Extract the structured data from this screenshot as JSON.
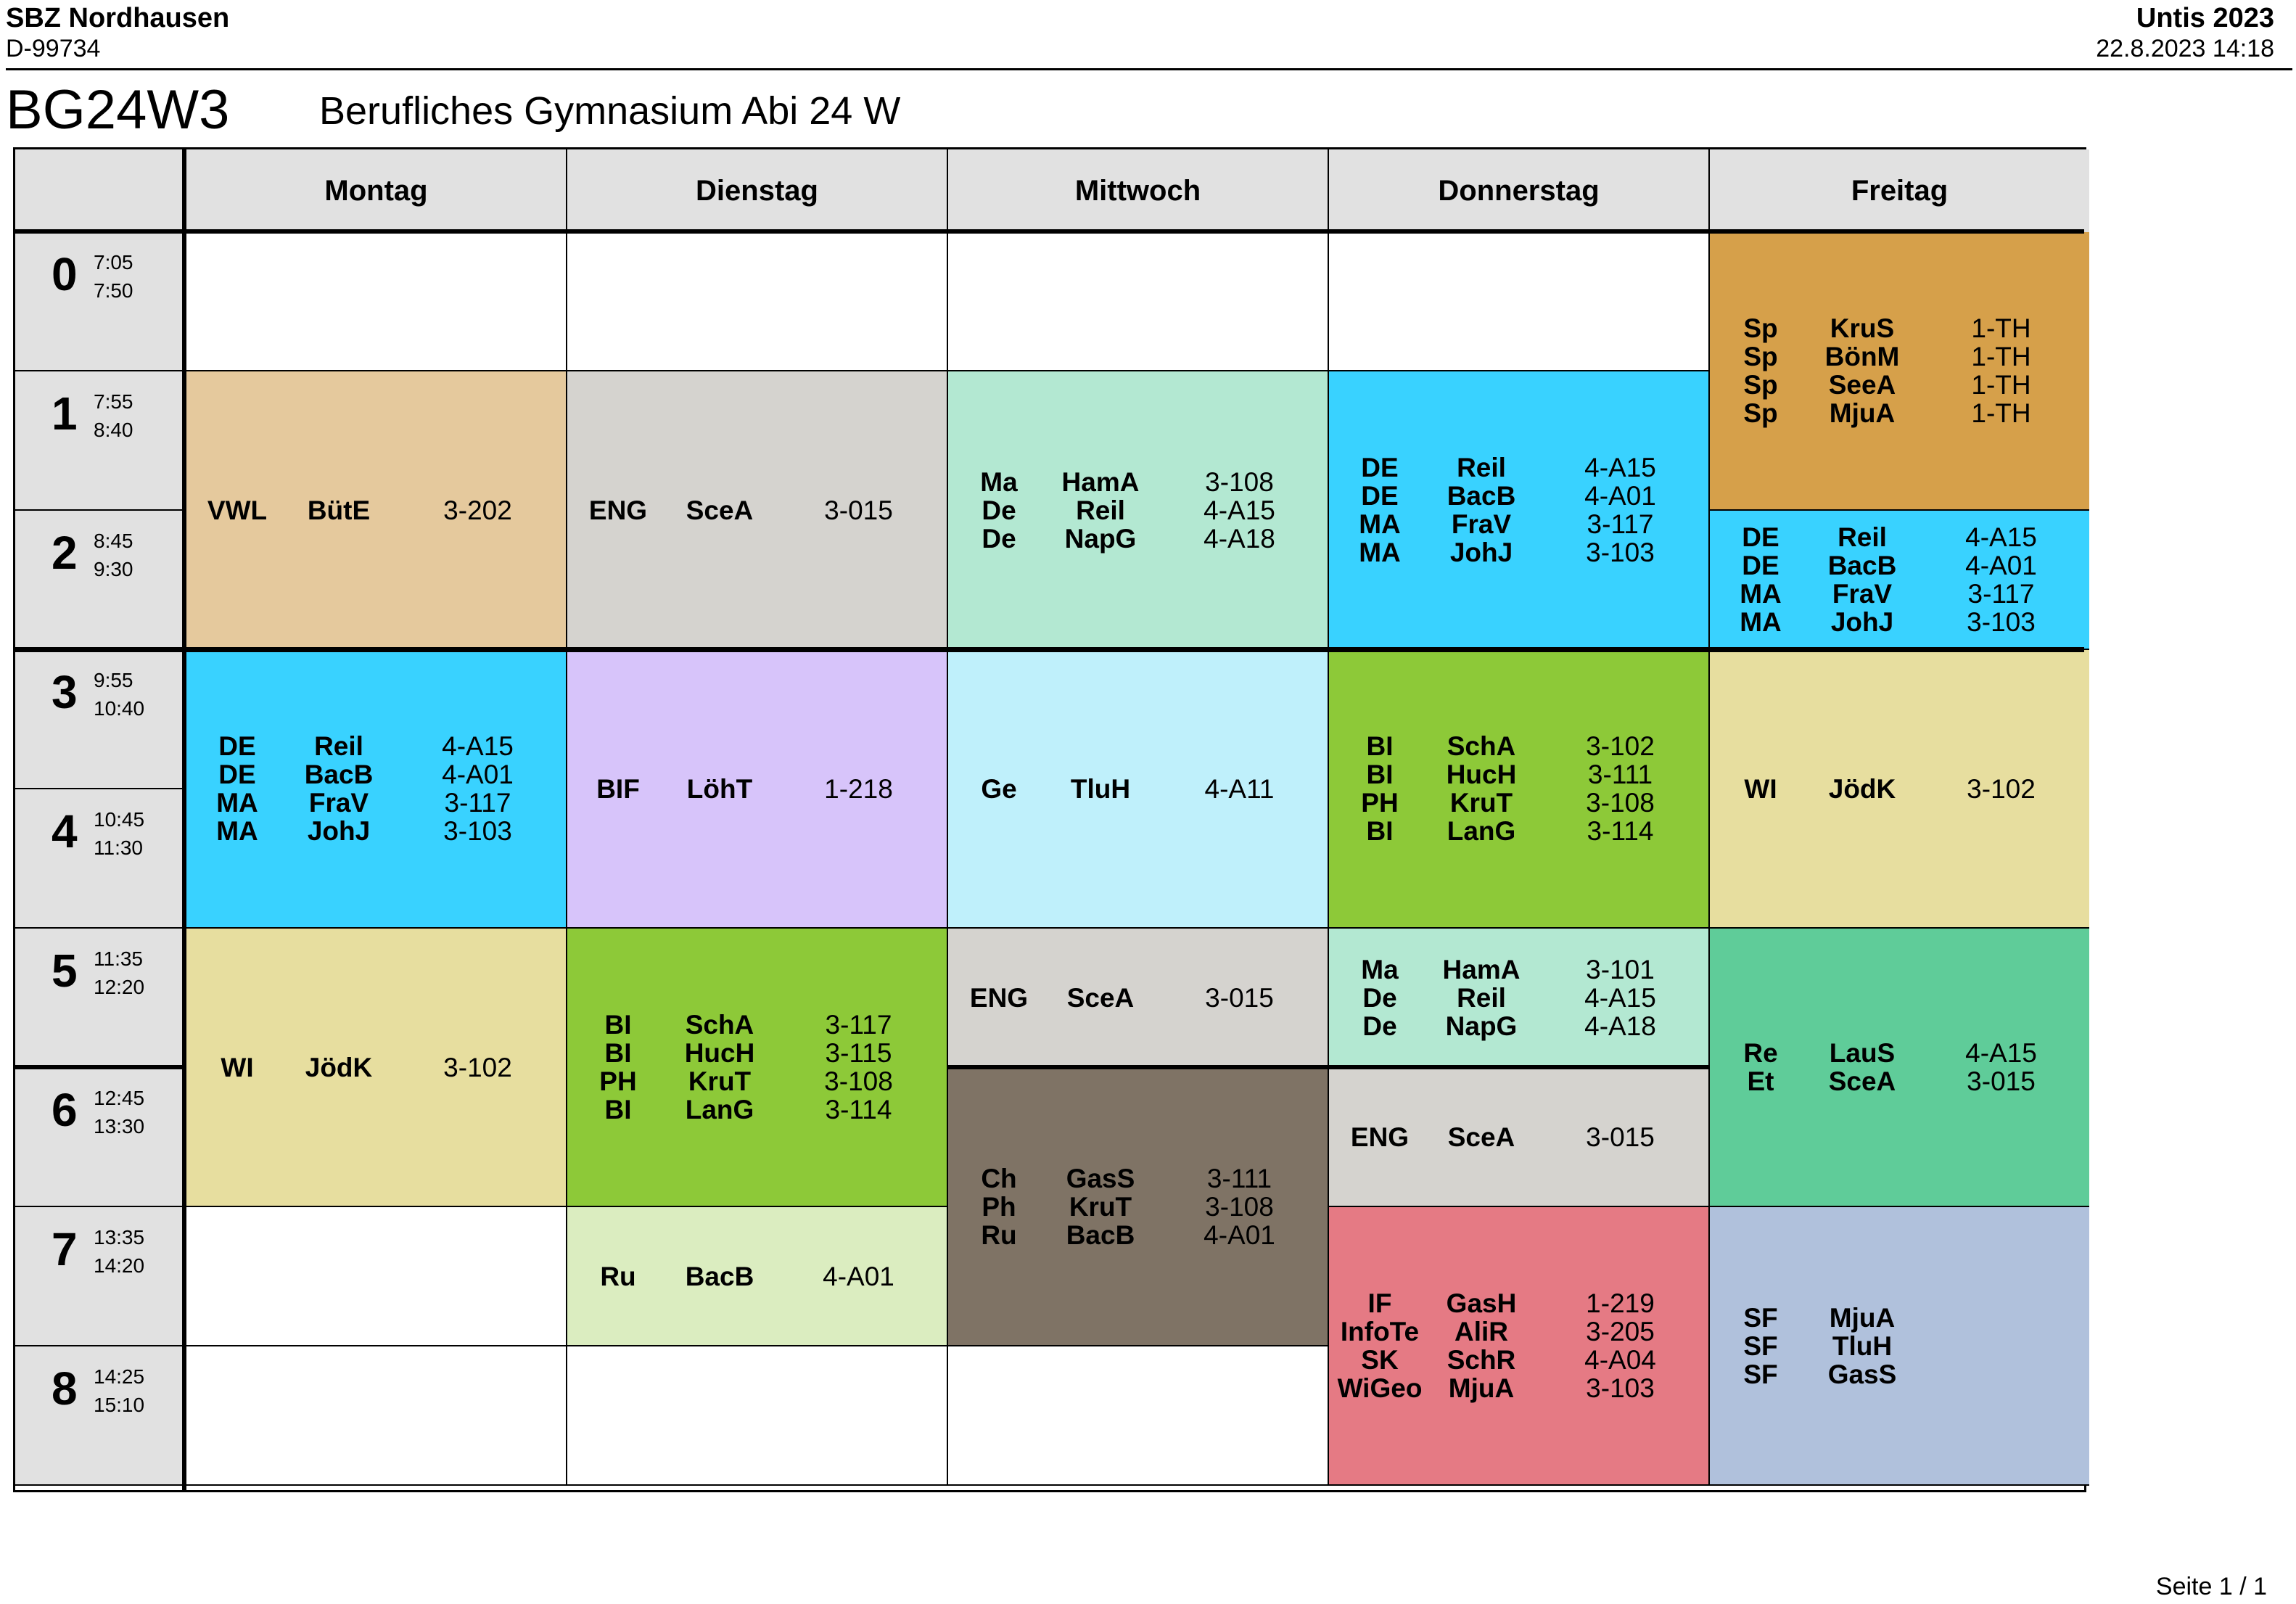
{
  "header": {
    "school": "SBZ Nordhausen",
    "code": "D-99734",
    "app": "Untis 2023",
    "timestamp": "22.8.2023  14:18",
    "class_code": "BG24W3",
    "class_name": "Berufliches Gymnasium Abi 24 W",
    "page_label": "Seite 1 / 1"
  },
  "days": [
    "Montag",
    "Dienstag",
    "Mittwoch",
    "Donnerstag",
    "Freitag"
  ],
  "periods": [
    {
      "num": "0",
      "start": "7:05",
      "end": "7:50"
    },
    {
      "num": "1",
      "start": "7:55",
      "end": "8:40"
    },
    {
      "num": "2",
      "start": "8:45",
      "end": "9:30"
    },
    {
      "num": "3",
      "start": "9:55",
      "end": "10:40"
    },
    {
      "num": "4",
      "start": "10:45",
      "end": "11:30"
    },
    {
      "num": "5",
      "start": "11:35",
      "end": "12:20"
    },
    {
      "num": "6",
      "start": "12:45",
      "end": "13:30"
    },
    {
      "num": "7",
      "start": "13:35",
      "end": "14:20"
    },
    {
      "num": "8",
      "start": "14:25",
      "end": "15:10"
    }
  ],
  "lessons": [
    {
      "day": 0,
      "start": 0,
      "span": 1,
      "color": "#ffffff",
      "rows": []
    },
    {
      "day": 1,
      "start": 0,
      "span": 1,
      "color": "#ffffff",
      "rows": []
    },
    {
      "day": 2,
      "start": 0,
      "span": 1,
      "color": "#ffffff",
      "rows": []
    },
    {
      "day": 3,
      "start": 0,
      "span": 1,
      "color": "#ffffff",
      "rows": []
    },
    {
      "day": 4,
      "start": 0,
      "span": 2,
      "color": "#d6a04a",
      "rows": [
        [
          "Sp",
          "KruS",
          "1-TH"
        ],
        [
          "Sp",
          "BönM",
          "1-TH"
        ],
        [
          "Sp",
          "SeeA",
          "1-TH"
        ],
        [
          "Sp",
          "MjuA",
          "1-TH"
        ]
      ]
    },
    {
      "day": 0,
      "start": 1,
      "span": 2,
      "color": "#e5c99d",
      "rows": [
        [
          "VWL",
          "BütE",
          "3-202"
        ]
      ]
    },
    {
      "day": 1,
      "start": 1,
      "span": 2,
      "color": "#d5d3cf",
      "rows": [
        [
          "ENG",
          "SceA",
          "3-015"
        ]
      ]
    },
    {
      "day": 2,
      "start": 1,
      "span": 2,
      "color": "#b3e8d2",
      "rows": [
        [
          "Ma",
          "HamA",
          "3-108"
        ],
        [
          "De",
          "Reil",
          "4-A15"
        ],
        [
          "De",
          "NapG",
          "4-A18"
        ]
      ]
    },
    {
      "day": 3,
      "start": 1,
      "span": 2,
      "color": "#39d2ff",
      "rows": [
        [
          "DE",
          "Reil",
          "4-A15"
        ],
        [
          "DE",
          "BacB",
          "4-A01"
        ],
        [
          "MA",
          "FraV",
          "3-117"
        ],
        [
          "MA",
          "JohJ",
          "3-103"
        ]
      ]
    },
    {
      "day": 4,
      "start": 2,
      "span": 1,
      "color": "#39d2ff",
      "rows": [
        [
          "DE",
          "Reil",
          "4-A15"
        ],
        [
          "DE",
          "BacB",
          "4-A01"
        ],
        [
          "MA",
          "FraV",
          "3-117"
        ],
        [
          "MA",
          "JohJ",
          "3-103"
        ]
      ]
    },
    {
      "day": 0,
      "start": 3,
      "span": 2,
      "color": "#39d2ff",
      "rows": [
        [
          "DE",
          "Reil",
          "4-A15"
        ],
        [
          "DE",
          "BacB",
          "4-A01"
        ],
        [
          "MA",
          "FraV",
          "3-117"
        ],
        [
          "MA",
          "JohJ",
          "3-103"
        ]
      ]
    },
    {
      "day": 1,
      "start": 3,
      "span": 2,
      "color": "#d7c4fa",
      "rows": [
        [
          "BIF",
          "LöhT",
          "1-218"
        ]
      ]
    },
    {
      "day": 2,
      "start": 3,
      "span": 2,
      "color": "#bff0fb",
      "rows": [
        [
          "Ge",
          "TluH",
          "4-A11"
        ]
      ]
    },
    {
      "day": 3,
      "start": 3,
      "span": 2,
      "color": "#8dc938",
      "rows": [
        [
          "BI",
          "SchA",
          "3-102"
        ],
        [
          "BI",
          "HucH",
          "3-111"
        ],
        [
          "PH",
          "KruT",
          "3-108"
        ],
        [
          "BI",
          "LanG",
          "3-114"
        ]
      ]
    },
    {
      "day": 4,
      "start": 3,
      "span": 2,
      "color": "#e7de9f",
      "rows": [
        [
          "WI",
          "JödK",
          "3-102"
        ]
      ]
    },
    {
      "day": 0,
      "start": 5,
      "span": 2,
      "color": "#e7de9f",
      "rows": [
        [
          "WI",
          "JödK",
          "3-102"
        ]
      ]
    },
    {
      "day": 1,
      "start": 5,
      "span": 2,
      "color": "#8dc938",
      "rows": [
        [
          "BI",
          "SchA",
          "3-117"
        ],
        [
          "BI",
          "HucH",
          "3-115"
        ],
        [
          "PH",
          "KruT",
          "3-108"
        ],
        [
          "BI",
          "LanG",
          "3-114"
        ]
      ]
    },
    {
      "day": 2,
      "start": 5,
      "span": 1,
      "color": "#d5d3cf",
      "rows": [
        [
          "ENG",
          "SceA",
          "3-015"
        ]
      ]
    },
    {
      "day": 3,
      "start": 5,
      "span": 1,
      "color": "#b3e8d2",
      "rows": [
        [
          "Ma",
          "HamA",
          "3-101"
        ],
        [
          "De",
          "Reil",
          "4-A15"
        ],
        [
          "De",
          "NapG",
          "4-A18"
        ]
      ]
    },
    {
      "day": 4,
      "start": 5,
      "span": 2,
      "color": "#5fcc99",
      "rows": [
        [
          "Re",
          "LauS",
          "4-A15"
        ],
        [
          "Et",
          "SceA",
          "3-015"
        ]
      ]
    },
    {
      "day": 2,
      "start": 6,
      "span": 2,
      "color": "#7f7365",
      "rows": [
        [
          "Ch",
          "GasS",
          "3-111"
        ],
        [
          "Ph",
          "KruT",
          "3-108"
        ],
        [
          "Ru",
          "BacB",
          "4-A01"
        ]
      ],
      "light": true
    },
    {
      "day": 3,
      "start": 6,
      "span": 1,
      "color": "#d5d3cf",
      "rows": [
        [
          "ENG",
          "SceA",
          "3-015"
        ]
      ]
    },
    {
      "day": 0,
      "start": 7,
      "span": 1,
      "color": "#ffffff",
      "rows": []
    },
    {
      "day": 1,
      "start": 7,
      "span": 1,
      "color": "#dbedc0",
      "rows": [
        [
          "Ru",
          "BacB",
          "4-A01"
        ]
      ]
    },
    {
      "day": 3,
      "start": 7,
      "span": 2,
      "color": "#e57a84",
      "rows": [
        [
          "IF",
          "GasH",
          "1-219"
        ],
        [
          "InfoTe",
          "AliR",
          "3-205"
        ],
        [
          "SK",
          "SchR",
          "4-A04"
        ],
        [
          "WiGeo",
          "MjuA",
          "3-103"
        ]
      ]
    },
    {
      "day": 4,
      "start": 7,
      "span": 2,
      "color": "#b0c1dc",
      "rows": [
        [
          "SF",
          "MjuA",
          ""
        ],
        [
          "SF",
          "TluH",
          ""
        ],
        [
          "SF",
          "GasS",
          ""
        ]
      ]
    },
    {
      "day": 0,
      "start": 8,
      "span": 1,
      "color": "#ffffff",
      "rows": []
    },
    {
      "day": 1,
      "start": 8,
      "span": 1,
      "color": "#ffffff",
      "rows": []
    },
    {
      "day": 2,
      "start": 8,
      "span": 1,
      "color": "#ffffff",
      "rows": []
    }
  ]
}
